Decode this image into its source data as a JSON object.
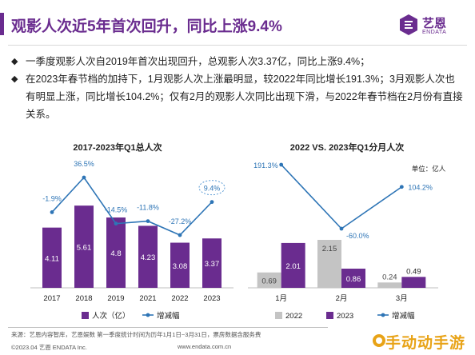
{
  "header": {
    "title": "观影人次近5年首次回升，同比上涨9.4%",
    "logo_name": "艺恩",
    "logo_sub": "ENDATA"
  },
  "bullets": [
    "一季度观影人次自2019年首次出现回升，总观影人次3.37亿，同比上涨9.4%；",
    "在2023年春节档的加持下，1月观影人次上涨最明显，较2022年同比增长191.3%；3月观影人次也有明显上涨，同比增长104.2%；仅有2月的观影人次同比出现下滑，与2022年春节档在2月份有直接关系。"
  ],
  "chart_data": [
    {
      "type": "bar",
      "title": "2017-2023年Q1总人次",
      "categories": [
        "2017",
        "2018",
        "2019",
        "2021",
        "2022",
        "2023"
      ],
      "series": [
        {
          "name": "人次（亿）",
          "type": "bar",
          "values": [
            4.11,
            5.61,
            4.8,
            4.23,
            3.08,
            3.37
          ],
          "labels": [
            "4.11",
            "5.61",
            "4.8",
            "4.23",
            "3.08",
            "3.37"
          ]
        },
        {
          "name": "增减幅",
          "type": "line",
          "values": [
            -1.9,
            36.5,
            -14.5,
            -11.8,
            -27.2,
            9.4
          ],
          "labels": [
            "-1.9%",
            "36.5%",
            "-14.5%",
            "-11.8%",
            "-27.2%",
            "9.4%"
          ]
        }
      ],
      "highlight": "9.4%",
      "legend": "bottom"
    },
    {
      "type": "bar",
      "title": "2022 VS. 2023年Q1分月人次",
      "unit_label": "单位：亿人",
      "categories": [
        "1月",
        "2月",
        "3月"
      ],
      "series": [
        {
          "name": "2022",
          "type": "bar",
          "values": [
            0.69,
            2.15,
            0.24
          ],
          "labels": [
            "0.69",
            "2.15",
            "0.24"
          ]
        },
        {
          "name": "2023",
          "type": "bar",
          "values": [
            2.01,
            0.86,
            0.49
          ],
          "labels": [
            "2.01",
            "0.86",
            "0.49"
          ]
        },
        {
          "name": "增减幅",
          "type": "line",
          "values": [
            191.3,
            -60.0,
            104.2
          ],
          "labels": [
            "191.3%",
            "-60.0%",
            "104.2%"
          ]
        }
      ],
      "legend": "bottom"
    }
  ],
  "colors": {
    "purple": "#6a2c8f",
    "bar_2022": "#c4c4c4",
    "line_blue": "#2e75b6",
    "highlight_ring": "#5b9bd5"
  },
  "footer": {
    "footnote": "来源：艺恩内容智库，艺恩娱数    第一季度统计时间为历年1月1日~3月31日，票房数据含服务费",
    "copyright": "©2023.04 艺恩 ENDATA Inc.",
    "website": "www.endata.com.cn"
  },
  "watermark": {
    "text": "手动动手游"
  }
}
